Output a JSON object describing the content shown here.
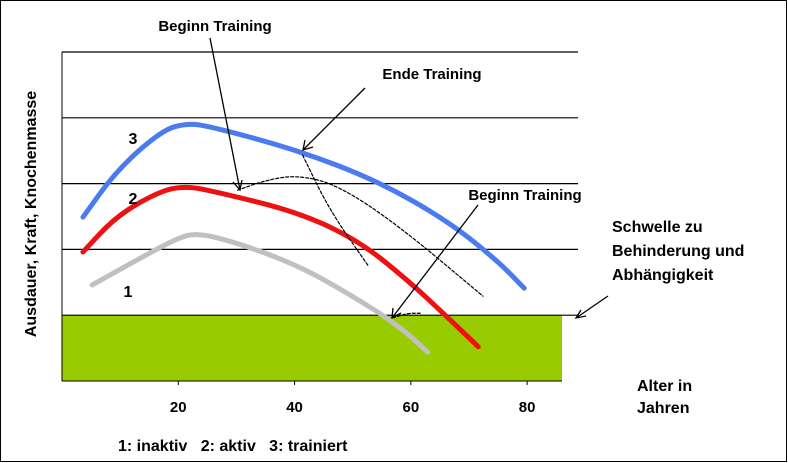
{
  "chart_data": {
    "type": "line",
    "ylabel": "Ausdauer, Kraft, Knochenmasse",
    "xlabel_lines": [
      "Alter in",
      "Jahren"
    ],
    "xlim": [
      0,
      86
    ],
    "xticks": [
      20,
      40,
      60,
      80
    ],
    "ylim": [
      0,
      5
    ],
    "yticks": [
      1,
      2,
      3,
      4,
      5
    ],
    "grid": true,
    "threshold": 1,
    "threshold_color": "#99cc00",
    "threshold_label_lines": [
      "Schwelle zu",
      "Behinderung und",
      "Abhängigkeit"
    ],
    "legend_text": "1: inaktiv   2: aktiv   3: trainiert",
    "annotations": [
      "Beginn Training",
      "Ende Training",
      "Beginn Training"
    ],
    "series": [
      {
        "name": "3",
        "color": "#4a7cf0",
        "x": [
          3.6,
          9.5,
          17.2,
          21.6,
          25.9,
          40.5,
          54.3,
          66.4,
          75.0,
          79.5
        ],
        "values": [
          2.49,
          3.21,
          3.81,
          3.92,
          3.86,
          3.51,
          3.04,
          2.43,
          1.82,
          1.41
        ]
      },
      {
        "name": "2",
        "color": "#ee1111",
        "x": [
          3.6,
          9.5,
          17.2,
          21.6,
          26.7,
          40.5,
          50.9,
          59.5,
          66.4,
          71.6
        ],
        "values": [
          1.96,
          2.52,
          2.9,
          2.96,
          2.87,
          2.57,
          2.14,
          1.53,
          0.96,
          0.52
        ]
      },
      {
        "name": "1",
        "color": "#c0c0c0",
        "x": [
          5.2,
          12.9,
          19.8,
          23.3,
          30.2,
          40.5,
          49.1,
          57.8,
          62.9
        ],
        "values": [
          1.46,
          1.84,
          2.17,
          2.25,
          2.1,
          1.76,
          1.34,
          0.85,
          0.44
        ]
      },
      {
        "color": "#000000",
        "dashed": true,
        "x": [
          30.2,
          35.0,
          40.5,
          47.4,
          57.8,
          72.4
        ],
        "values": [
          2.9,
          3.05,
          3.13,
          2.98,
          2.37,
          1.29
        ]
      },
      {
        "color": "#000000",
        "dashed": true,
        "x": [
          41.4,
          46.0,
          52.6
        ],
        "values": [
          3.43,
          2.6,
          1.76
        ]
      },
      {
        "color": "#000000",
        "dashed": true,
        "x": [
          56.9,
          59.5,
          61.6
        ],
        "values": [
          0.96,
          1.03,
          1.03
        ]
      }
    ]
  }
}
